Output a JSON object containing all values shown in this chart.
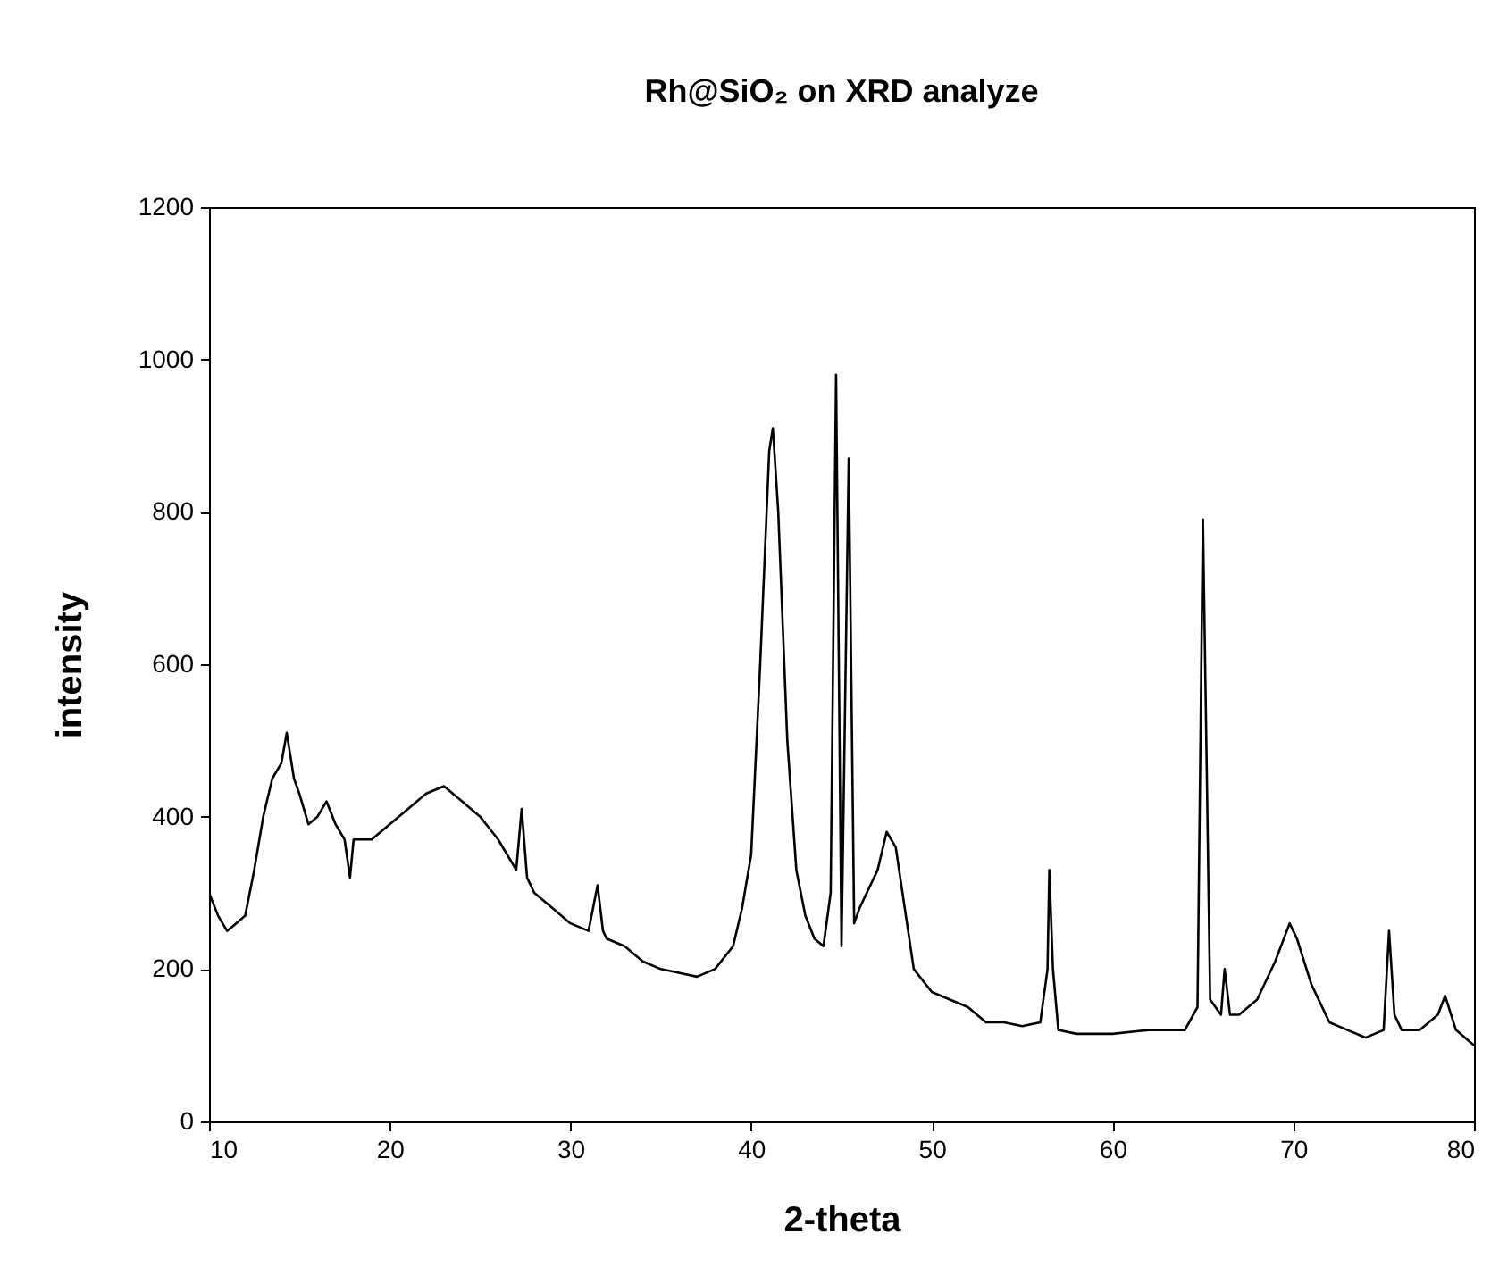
{
  "chart_data": {
    "type": "line",
    "title": "Rh@SiO₂ on XRD analyze",
    "xlabel": "2-theta",
    "ylabel": "intensity",
    "x": [
      10,
      10.5,
      11,
      11.5,
      12,
      12.5,
      13,
      13.5,
      14,
      14.3,
      14.7,
      15,
      15.5,
      16,
      16.5,
      17,
      17.5,
      17.8,
      18,
      19,
      20,
      21,
      22,
      23,
      24,
      25,
      26,
      27,
      27.3,
      27.6,
      28,
      29,
      30,
      31,
      31.5,
      31.8,
      32,
      33,
      34,
      35,
      36,
      37,
      38,
      39,
      39.5,
      40,
      40.5,
      41,
      41.2,
      41.5,
      42,
      42.5,
      43,
      43.5,
      44,
      44.4,
      44.7,
      45,
      45.4,
      45.7,
      46,
      47,
      47.5,
      48,
      48.5,
      49,
      50,
      51,
      52,
      53,
      54,
      55,
      56,
      56.4,
      56.5,
      56.7,
      57,
      58,
      60,
      62,
      64,
      64.7,
      65,
      65.2,
      65.4,
      66,
      66.2,
      66.5,
      67,
      68,
      69,
      69.8,
      70.2,
      71,
      72,
      73,
      74,
      75,
      75.3,
      75.6,
      76,
      77,
      78,
      78.4,
      79,
      80
    ],
    "series": [
      {
        "color": "#000000",
        "values": [
          300,
          270,
          250,
          260,
          270,
          330,
          400,
          450,
          470,
          510,
          450,
          430,
          390,
          400,
          420,
          390,
          370,
          320,
          370,
          370,
          390,
          410,
          430,
          440,
          420,
          400,
          370,
          330,
          410,
          320,
          300,
          280,
          260,
          250,
          310,
          250,
          240,
          230,
          210,
          200,
          195,
          190,
          200,
          230,
          280,
          350,
          600,
          880,
          910,
          800,
          500,
          330,
          270,
          240,
          230,
          300,
          980,
          230,
          870,
          260,
          280,
          330,
          380,
          360,
          280,
          200,
          170,
          160,
          150,
          130,
          130,
          125,
          130,
          200,
          330,
          200,
          120,
          115,
          115,
          120,
          120,
          150,
          790,
          480,
          160,
          140,
          200,
          140,
          140,
          160,
          210,
          260,
          240,
          180,
          130,
          120,
          110,
          120,
          250,
          140,
          120,
          120,
          140,
          165,
          120,
          100
        ]
      }
    ],
    "xlim": [
      10,
      80
    ],
    "xticks": [
      10,
      20,
      30,
      40,
      50,
      60,
      70,
      80
    ],
    "ylim": [
      0,
      1200
    ],
    "yticks": [
      0,
      200,
      400,
      600,
      800,
      1000,
      1200
    ],
    "grid": false,
    "marker": "none",
    "line_style": "solid"
  }
}
